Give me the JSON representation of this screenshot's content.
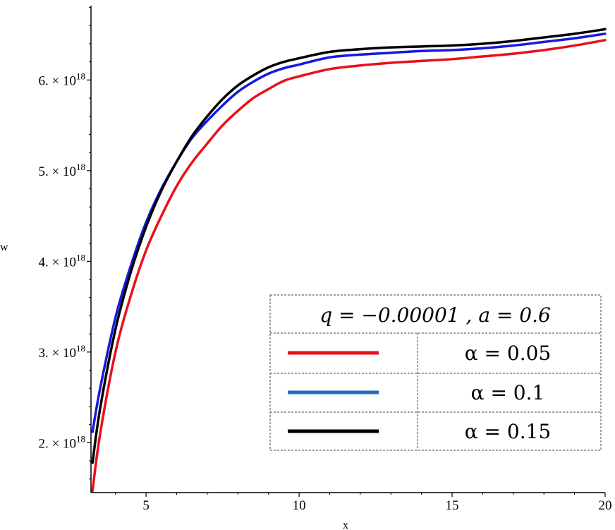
{
  "chart_data": {
    "type": "line",
    "xlabel": "x",
    "ylabel": "w",
    "xlim": [
      3.2,
      20
    ],
    "ylim": [
      1.45e+18,
      6.82e+18
    ],
    "x_ticks": [
      {
        "value": 5,
        "label": "5"
      },
      {
        "value": 10,
        "label": "10"
      },
      {
        "value": 15,
        "label": "15"
      },
      {
        "value": 20,
        "label": "20"
      }
    ],
    "y_ticks": [
      {
        "value": 2e+18,
        "mantissa": "2. × 10",
        "exp": "18"
      },
      {
        "value": 3e+18,
        "mantissa": "3. × 10",
        "exp": "18"
      },
      {
        "value": 4e+18,
        "mantissa": "4. × 10",
        "exp": "18"
      },
      {
        "value": 5e+18,
        "mantissa": "5. × 10",
        "exp": "18"
      },
      {
        "value": 6e+18,
        "mantissa": "6. × 10",
        "exp": "18"
      }
    ],
    "legend": {
      "title": "q = −0.00001  , a = 0.6",
      "placement": "bottom-right"
    },
    "series": [
      {
        "name": "α = 0.05",
        "color": "#e8101a",
        "x": [
          3.25,
          3.5,
          4,
          4.5,
          5,
          5.5,
          6,
          6.5,
          7,
          7.5,
          8,
          8.5,
          9,
          9.5,
          10,
          11,
          12,
          13,
          14,
          15,
          16,
          17,
          18,
          19,
          20
        ],
        "y": [
          1.47e+18,
          2.1e+18,
          3e+18,
          3.62e+18,
          4.12e+18,
          4.5e+18,
          4.83e+18,
          5.09e+18,
          5.3e+18,
          5.5e+18,
          5.66e+18,
          5.8e+18,
          5.9e+18,
          5.99e+18,
          6.04e+18,
          6.12e+18,
          6.16e+18,
          6.19e+18,
          6.21e+18,
          6.23e+18,
          6.26e+18,
          6.29e+18,
          6.33e+18,
          6.38e+18,
          6.44e+18
        ]
      },
      {
        "name": "α = 0.1",
        "color": "#1818e0",
        "x": [
          3.25,
          3.5,
          4,
          4.5,
          5,
          5.5,
          6,
          6.5,
          7,
          7.5,
          8,
          8.5,
          9,
          9.5,
          10,
          11,
          12,
          13,
          14,
          15,
          16,
          17,
          18,
          19,
          20
        ],
        "y": [
          2.12e+18,
          2.6e+18,
          3.38e+18,
          3.95e+18,
          4.43e+18,
          4.8e+18,
          5.1e+18,
          5.36e+18,
          5.55e+18,
          5.72e+18,
          5.87e+18,
          5.98e+18,
          6.07e+18,
          6.13e+18,
          6.17e+18,
          6.25e+18,
          6.28e+18,
          6.3e+18,
          6.32e+18,
          6.33e+18,
          6.35e+18,
          6.38e+18,
          6.42e+18,
          6.46e+18,
          6.51e+18
        ]
      },
      {
        "name": "α = 0.15",
        "color": "#000000",
        "x": [
          3.25,
          3.5,
          4,
          4.5,
          5,
          5.5,
          6,
          6.5,
          7,
          7.5,
          8,
          8.5,
          9,
          9.5,
          10,
          11,
          12,
          13,
          14,
          15,
          16,
          17,
          18,
          19,
          20
        ],
        "y": [
          1.78e+18,
          2.38e+18,
          3.25e+18,
          3.88e+18,
          4.38e+18,
          4.78e+18,
          5.1e+18,
          5.38e+18,
          5.6e+18,
          5.79e+18,
          5.94e+18,
          6.05e+18,
          6.14e+18,
          6.2e+18,
          6.24e+18,
          6.31e+18,
          6.34e+18,
          6.36e+18,
          6.37e+18,
          6.38e+18,
          6.4e+18,
          6.43e+18,
          6.47e+18,
          6.51e+18,
          6.56e+18
        ]
      }
    ],
    "legend_swatch_colors": [
      "#e8101a",
      "#1f6fc0",
      "#000000"
    ]
  }
}
